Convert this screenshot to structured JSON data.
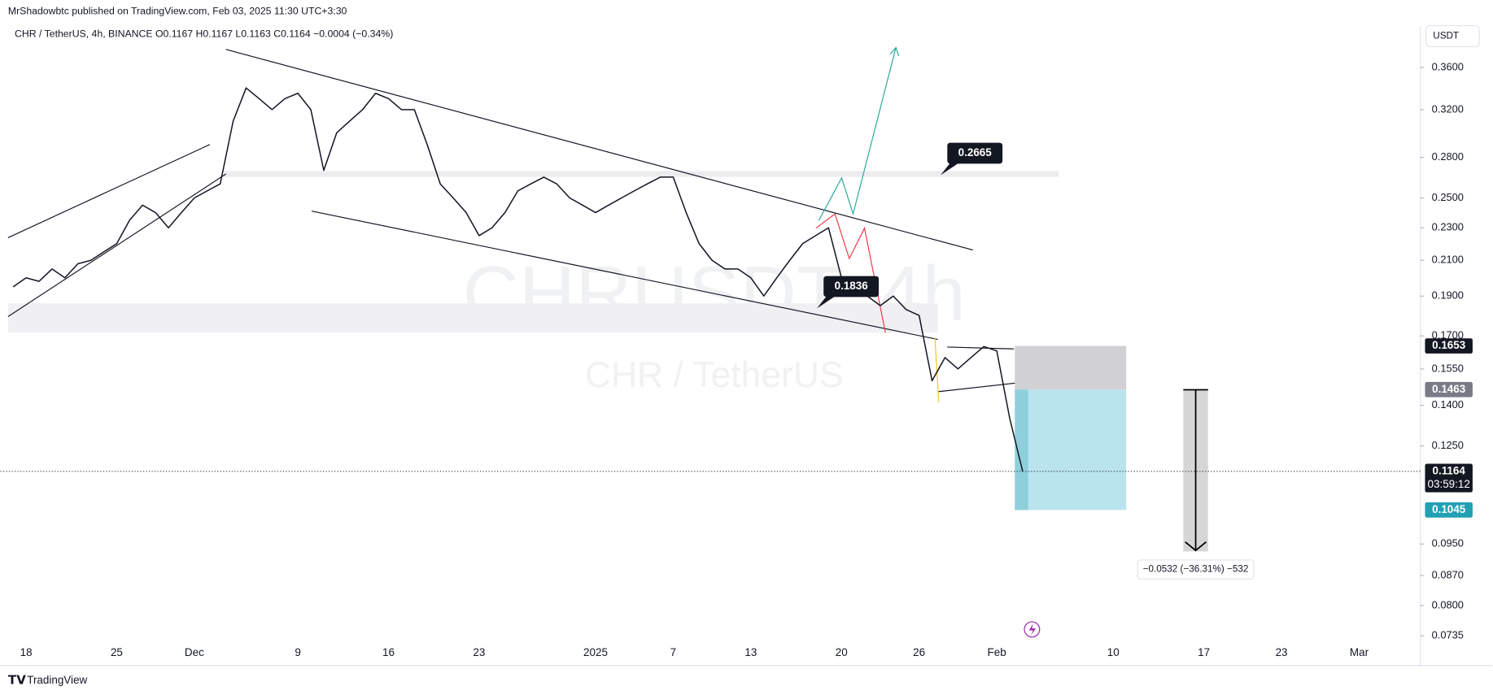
{
  "header": {
    "published": "MrShadowbtc published on TradingView.com, Feb 03, 2025 11:30 UTC+3:30",
    "symbol_line": "CHR / TetherUS, 4h, BINANCE  O0.1167  H0.1167  L0.1163  C0.1164  −0.0004 (−0.34%)"
  },
  "watermark": {
    "symbol": "CHRUSDT, 4h",
    "name": "CHR / TetherUS"
  },
  "currency_button": "USDT",
  "brand": "TradingView",
  "measure_label": "−0.0532 (−36.31%) −532",
  "chart_data": {
    "type": "line",
    "color": "#131722",
    "log_scale": true,
    "grid": false,
    "categories": [
      null,
      "18",
      null,
      null,
      null,
      null,
      null,
      null,
      "25",
      null,
      null,
      null,
      null,
      null,
      "Dec",
      null,
      null,
      null,
      null,
      null,
      null,
      null,
      "9",
      null,
      null,
      null,
      null,
      null,
      null,
      "16",
      null,
      null,
      null,
      null,
      null,
      null,
      "23",
      null,
      null,
      null,
      null,
      null,
      null,
      null,
      null,
      "2025",
      null,
      null,
      null,
      null,
      null,
      "7",
      null,
      null,
      null,
      null,
      null,
      "13",
      null,
      null,
      null,
      null,
      null,
      null,
      "20",
      null,
      null,
      null,
      null,
      null,
      "26",
      null,
      null,
      null,
      null,
      null,
      "Feb",
      null,
      null,
      null,
      null,
      null,
      null,
      null,
      null,
      "10",
      null,
      null,
      null,
      null,
      null,
      null,
      "17",
      null,
      null,
      null,
      null,
      null,
      "23",
      null,
      null,
      null,
      null,
      null,
      "Mar",
      null,
      null,
      null,
      null
    ],
    "values": [
      0.195,
      0.2,
      0.198,
      0.205,
      0.2,
      0.208,
      0.21,
      0.215,
      0.22,
      0.235,
      0.245,
      0.24,
      0.23,
      0.24,
      0.25,
      0.255,
      0.26,
      0.31,
      0.34,
      0.33,
      0.32,
      0.33,
      0.335,
      0.32,
      0.27,
      0.3,
      0.31,
      0.32,
      0.335,
      0.33,
      0.32,
      0.32,
      0.29,
      0.26,
      0.25,
      0.24,
      0.225,
      0.23,
      0.24,
      0.255,
      0.26,
      0.265,
      0.26,
      0.25,
      0.245,
      0.24,
      0.245,
      0.25,
      0.255,
      0.26,
      0.265,
      0.265,
      0.24,
      0.22,
      0.21,
      0.205,
      0.205,
      0.2,
      0.19,
      0.2,
      0.21,
      0.22,
      0.225,
      0.23,
      0.2,
      0.19,
      0.19,
      0.185,
      0.19,
      0.183,
      0.18,
      0.15,
      0.16,
      0.155,
      0.16,
      0.165,
      0.163,
      0.135,
      0.1164,
      null,
      null,
      null,
      null,
      null,
      null,
      null,
      null,
      null,
      null,
      null,
      null,
      null,
      null,
      null,
      null,
      null,
      null,
      null,
      null,
      null,
      null,
      null,
      null,
      null,
      null,
      null,
      null,
      null,
      null
    ],
    "ylim": [
      0.0721,
      0.4036
    ],
    "yticks": [
      {
        "value": 0.36,
        "label": "0.3600"
      },
      {
        "value": 0.32,
        "label": "0.3200"
      },
      {
        "value": 0.28,
        "label": "0.2800"
      },
      {
        "value": 0.25,
        "label": "0.2500"
      },
      {
        "value": 0.23,
        "label": "0.2300"
      },
      {
        "value": 0.21,
        "label": "0.2100"
      },
      {
        "value": 0.19,
        "label": "0.1900"
      },
      {
        "value": 0.17,
        "label": "0.1700"
      },
      {
        "value": 0.155,
        "label": "0.1550"
      },
      {
        "value": 0.14,
        "label": "0.1400"
      },
      {
        "value": 0.125,
        "label": "0.1250"
      },
      {
        "value": 0.095,
        "label": "0.0950"
      },
      {
        "value": 0.087,
        "label": "0.0870"
      },
      {
        "value": 0.08,
        "label": "0.0800"
      },
      {
        "value": 0.0735,
        "label": "0.0735"
      }
    ],
    "annotations": [
      0.2665,
      0.1836
    ],
    "price_tags": [
      {
        "value": 0.1653,
        "color": "#131722"
      },
      {
        "value": 0.1463,
        "color": "#787b86"
      },
      {
        "value": 0.1164,
        "color": "#131722"
      },
      {
        "value": 0.1045,
        "color": "#22a0b4"
      }
    ],
    "countdown": "03:59:12"
  }
}
